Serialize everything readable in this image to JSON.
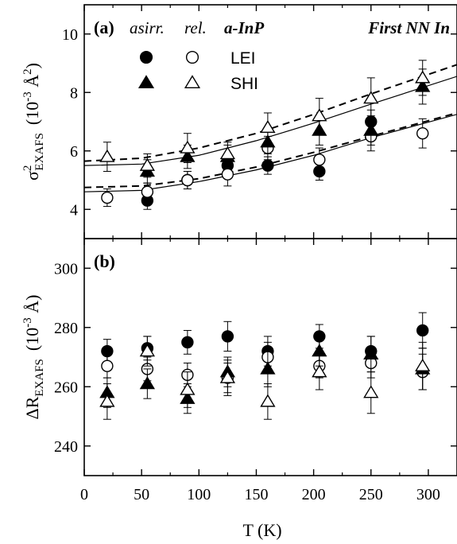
{
  "chart_data": [
    {
      "type": "scatter",
      "panel_label": "(a)",
      "annotation": "First NN In",
      "ylabel": {
        "base": "σ",
        "sup": "2",
        "sub": "EXAFS",
        "unit_pre": "(10",
        "unit_sup": "-3",
        "unit_post": " Å",
        "unit_sup2": "2",
        "unit_close": ")"
      },
      "xlim": [
        0,
        325
      ],
      "ylim": [
        3,
        11
      ],
      "yticks": [
        4,
        6,
        8,
        10
      ],
      "legend": {
        "col_headers": [
          "asirr.",
          "rel."
        ],
        "sample": "a-InP",
        "rows": [
          {
            "label": "LEI",
            "asirr_marker": "filled-circle",
            "rel_marker": "open-circle"
          },
          {
            "label": "SHI",
            "asirr_marker": "filled-triangle",
            "rel_marker": "open-triangle"
          }
        ],
        "position": "top-left"
      },
      "series": [
        {
          "name": "LEI asirr.",
          "marker": "filled-circle",
          "x": [
            20,
            55,
            90,
            125,
            160,
            205,
            250,
            295
          ],
          "y": [
            null,
            4.3,
            5.0,
            5.5,
            5.5,
            5.3,
            7.0,
            null
          ],
          "err": [
            0.3,
            0.3,
            0.3,
            0.3,
            0.3,
            0.3,
            0.4,
            0.4
          ]
        },
        {
          "name": "LEI rel.",
          "marker": "open-circle",
          "x": [
            20,
            55,
            90,
            125,
            160,
            205,
            250,
            295
          ],
          "y": [
            4.4,
            4.6,
            5.0,
            5.2,
            6.1,
            5.7,
            6.5,
            6.6
          ],
          "err": [
            0.3,
            0.3,
            0.3,
            0.4,
            0.4,
            0.4,
            0.5,
            0.5
          ]
        },
        {
          "name": "SHI asirr.",
          "marker": "filled-triangle",
          "x": [
            20,
            55,
            90,
            125,
            160,
            205,
            250,
            295
          ],
          "y": [
            null,
            5.3,
            5.8,
            5.8,
            6.3,
            6.7,
            6.7,
            8.2
          ],
          "err": [
            0.4,
            0.4,
            0.4,
            0.4,
            0.4,
            0.5,
            0.5,
            0.6
          ]
        },
        {
          "name": "SHI rel.",
          "marker": "open-triangle",
          "x": [
            20,
            55,
            90,
            125,
            160,
            205,
            250,
            295
          ],
          "y": [
            5.8,
            5.5,
            6.1,
            5.9,
            6.8,
            7.2,
            7.8,
            8.5
          ],
          "err": [
            0.5,
            0.4,
            0.5,
            0.4,
            0.5,
            0.6,
            0.7,
            0.6
          ]
        }
      ],
      "fits": [
        {
          "style": "dashed",
          "x": [
            0,
            50,
            100,
            150,
            200,
            250,
            325
          ],
          "y": [
            4.75,
            4.8,
            5.05,
            5.45,
            5.95,
            6.5,
            7.3
          ]
        },
        {
          "style": "solid",
          "x": [
            0,
            50,
            100,
            150,
            200,
            250,
            325
          ],
          "y": [
            4.6,
            4.65,
            4.95,
            5.35,
            5.85,
            6.45,
            7.25
          ]
        },
        {
          "style": "dashed",
          "x": [
            0,
            50,
            100,
            150,
            200,
            250,
            325
          ],
          "y": [
            5.65,
            5.75,
            6.1,
            6.6,
            7.25,
            7.95,
            8.95
          ]
        },
        {
          "style": "solid",
          "x": [
            0,
            50,
            100,
            150,
            200,
            250,
            325
          ],
          "y": [
            5.5,
            5.55,
            5.85,
            6.35,
            6.95,
            7.6,
            8.55
          ]
        }
      ]
    },
    {
      "type": "scatter",
      "panel_label": "(b)",
      "ylabel": {
        "base": "ΔR",
        "sub": "EXAFS",
        "unit_pre": "(10",
        "unit_sup": "-3",
        "unit_post": " Å)"
      },
      "xlabel": "T  (K)",
      "xlim": [
        0,
        325
      ],
      "ylim": [
        230,
        310
      ],
      "xticks": [
        0,
        50,
        100,
        150,
        200,
        250,
        300
      ],
      "yticks": [
        240,
        260,
        280,
        300
      ],
      "series": [
        {
          "name": "LEI asirr.",
          "marker": "filled-circle",
          "x": [
            20,
            55,
            90,
            125,
            160,
            205,
            250,
            295
          ],
          "y": [
            272,
            273,
            275,
            277,
            272,
            277,
            272,
            279
          ],
          "err": [
            4,
            4,
            4,
            5,
            5,
            4,
            5,
            6
          ]
        },
        {
          "name": "LEI rel.",
          "marker": "open-circle",
          "x": [
            20,
            55,
            90,
            125,
            160,
            205,
            250,
            295
          ],
          "y": [
            267,
            266,
            264,
            263,
            270,
            267,
            268,
            265
          ],
          "err": [
            4,
            4,
            4,
            5,
            5,
            4,
            5,
            6
          ]
        },
        {
          "name": "SHI asirr.",
          "marker": "filled-triangle",
          "x": [
            20,
            55,
            90,
            125,
            160,
            205,
            250,
            295
          ],
          "y": [
            258,
            261,
            256,
            265,
            266,
            272,
            271,
            266
          ],
          "err": [
            5,
            5,
            5,
            5,
            6,
            5,
            6,
            7
          ]
        },
        {
          "name": "SHI rel.",
          "marker": "open-triangle",
          "x": [
            20,
            55,
            90,
            125,
            160,
            205,
            250,
            295
          ],
          "y": [
            255,
            272,
            259,
            263,
            255,
            265,
            258,
            267
          ],
          "err": [
            6,
            5,
            6,
            6,
            6,
            6,
            7,
            8
          ]
        }
      ]
    }
  ]
}
